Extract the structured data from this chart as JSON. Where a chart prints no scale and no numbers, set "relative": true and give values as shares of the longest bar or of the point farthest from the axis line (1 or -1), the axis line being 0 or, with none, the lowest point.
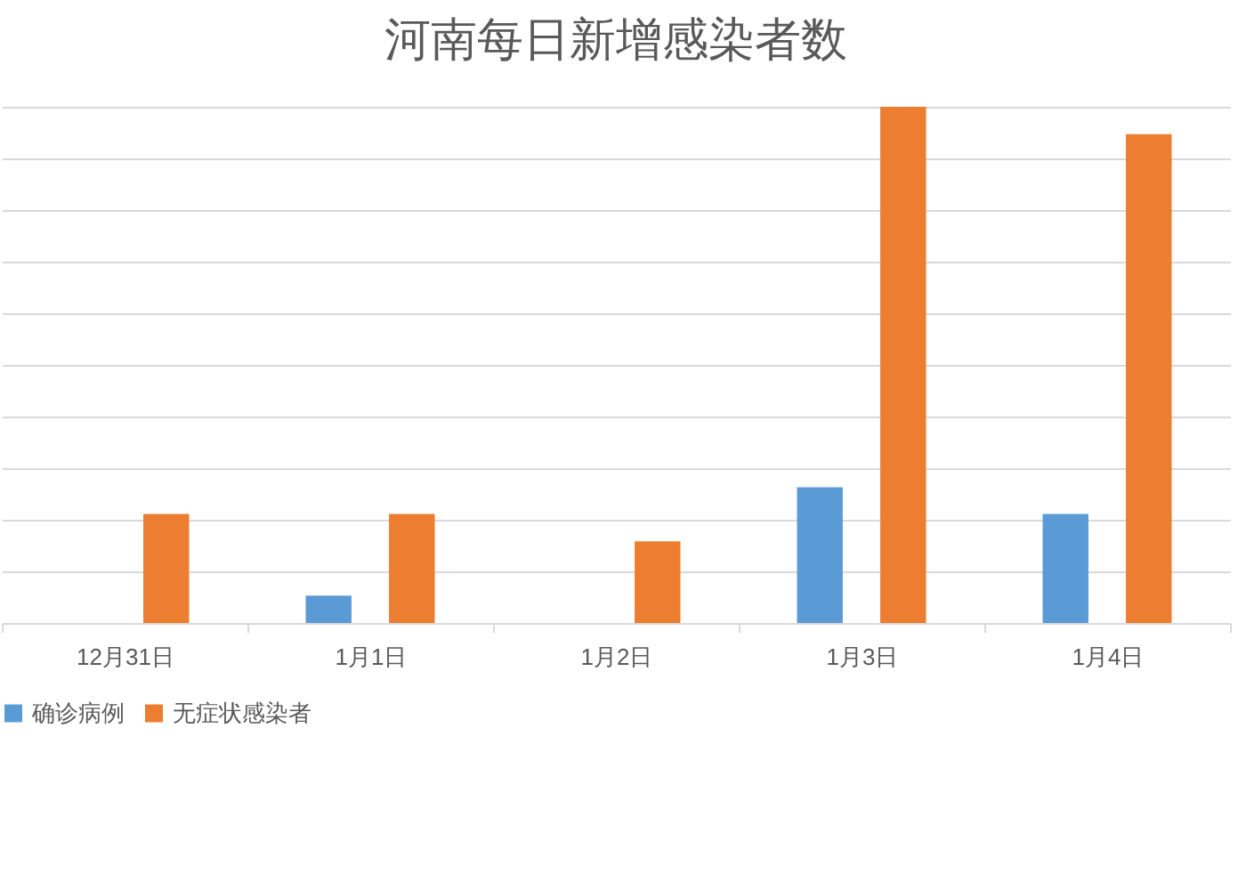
{
  "chart_data": {
    "type": "bar",
    "title": "河南每日新增感染者数",
    "relative": true,
    "grid": "y",
    "legend": "bottom",
    "categories": [
      "12月31日",
      "1月1日",
      "1月2日",
      "1月3日",
      "1月4日"
    ],
    "series": [
      {
        "name": "确诊病例",
        "color": "#5b9bd5",
        "values": [
          0,
          0.053,
          0,
          0.263,
          0.211
        ]
      },
      {
        "name": "无症状感染者",
        "color": "#ed7d31",
        "values": [
          0.211,
          0.211,
          0.158,
          1,
          0.947
        ]
      }
    ]
  }
}
